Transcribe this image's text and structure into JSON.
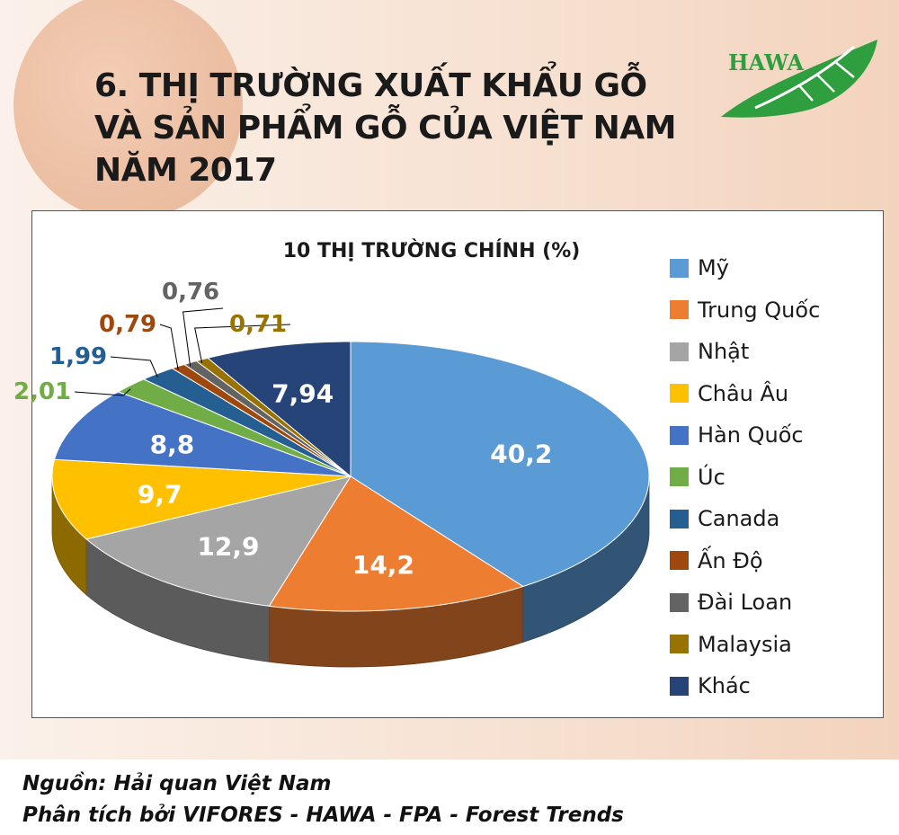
{
  "header": {
    "title_lines": [
      "6. THỊ TRƯỜNG XUẤT KHẨU GỖ",
      "VÀ SẢN PHẨM GỖ CỦA VIỆT NAM",
      "NĂM 2017"
    ],
    "logo_text": "HAWA"
  },
  "chart_data": {
    "type": "pie",
    "title": "10 THỊ TRƯỜNG CHÍNH (%)",
    "categories": [
      "Mỹ",
      "Trung Quốc",
      "Nhật",
      "Châu Âu",
      "Hàn Quốc",
      "Úc",
      "Canada",
      "Ấn Độ",
      "Đài Loan",
      "Malaysia",
      "Khác"
    ],
    "values": [
      40.2,
      14.2,
      12.9,
      9.7,
      8.8,
      2.01,
      1.99,
      0.79,
      0.76,
      0.71,
      7.94
    ],
    "labels": [
      "40,2",
      "14,2",
      "12,9",
      "9,7",
      "8,8",
      "2,01",
      "1,99",
      "0,79",
      "0,76",
      "0,71",
      "7,94"
    ],
    "colors": [
      "#5b9bd5",
      "#ed7d31",
      "#a5a5a5",
      "#ffc000",
      "#4472c4",
      "#70ad47",
      "#255e91",
      "#9e480e",
      "#636363",
      "#997300",
      "#264478"
    ],
    "label_colors": [
      "#ffffff",
      "#ffffff",
      "#ffffff",
      "#ffffff",
      "#ffffff",
      "#70ad47",
      "#255e91",
      "#9e480e",
      "#636363",
      "#997300",
      "#ffffff"
    ],
    "three_d": true,
    "legend_position": "right"
  },
  "footer": {
    "source_line": "Nguồn: Hải quan Việt Nam",
    "analysis_line": "Phân tích bởi VIFORES - HAWA - FPA - Forest Trends"
  }
}
